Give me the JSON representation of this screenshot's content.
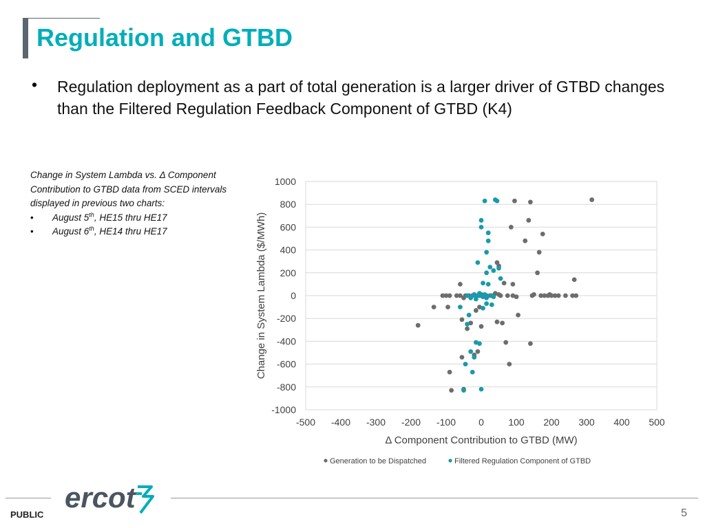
{
  "page": {
    "title": "Regulation and GTBD",
    "bullet": "Regulation deployment as a part of total generation is a larger driver of GTBD changes than the Filtered Regulation Feedback Component of GTBD (K4)",
    "note_intro": "Change in System Lambda vs. Δ Component Contribution to GTBD data from SCED intervals displayed in previous two charts:",
    "note_items": [
      {
        "pre": "August 5",
        "sup": "th",
        "post": ", HE15 thru HE17"
      },
      {
        "pre": "August 6",
        "sup": "th",
        "post": ", HE14 thru HE17"
      }
    ],
    "footer_label": "PUBLIC",
    "page_number": "5",
    "logo_text": "ercot",
    "colors": {
      "title": "#00aeb9",
      "series_gen": "#6d6d6d",
      "series_reg": "#1a9aaa",
      "logo": "#4a5560",
      "logo_mark": "#00aeb9"
    }
  },
  "chart_data": {
    "type": "scatter",
    "xlabel": "Δ Component Contribution to GTBD (MW)",
    "ylabel": "Change in System Lambda ($/MWh)",
    "xlim": [
      -500,
      500
    ],
    "ylim": [
      -1000,
      1000
    ],
    "xticks": [
      -500,
      -400,
      -300,
      -200,
      -100,
      0,
      100,
      200,
      300,
      400,
      500
    ],
    "yticks": [
      1000,
      800,
      600,
      400,
      200,
      0,
      -200,
      -400,
      -600,
      -800,
      -1000
    ],
    "grid": "y-major",
    "legend_position": "bottom",
    "series": [
      {
        "name": "Generation to be Dispatched",
        "color": "#6d6d6d",
        "points": [
          [
            -180,
            -260
          ],
          [
            -135,
            -100
          ],
          [
            -100,
            0
          ],
          [
            -90,
            0
          ],
          [
            -95,
            -100
          ],
          [
            -90,
            -670
          ],
          [
            -85,
            -830
          ],
          [
            -60,
            100
          ],
          [
            -55,
            -210
          ],
          [
            -55,
            -540
          ],
          [
            -50,
            -820
          ],
          [
            -40,
            -290
          ],
          [
            -30,
            -240
          ],
          [
            -20,
            -520
          ],
          [
            -15,
            -130
          ],
          [
            -10,
            -490
          ],
          [
            -5,
            -100
          ],
          [
            0,
            -270
          ],
          [
            -70,
            0
          ],
          [
            -60,
            0
          ],
          [
            -45,
            0
          ],
          [
            -35,
            0
          ],
          [
            -25,
            0
          ],
          [
            -15,
            0
          ],
          [
            -5,
            0
          ],
          [
            5,
            0
          ],
          [
            15,
            0
          ],
          [
            25,
            0
          ],
          [
            35,
            0
          ],
          [
            40,
            20
          ],
          [
            45,
            290
          ],
          [
            50,
            260
          ],
          [
            50,
            10
          ],
          [
            45,
            -230
          ],
          [
            60,
            -240
          ],
          [
            65,
            110
          ],
          [
            70,
            -410
          ],
          [
            75,
            0
          ],
          [
            80,
            -600
          ],
          [
            85,
            600
          ],
          [
            90,
            100
          ],
          [
            90,
            0
          ],
          [
            95,
            830
          ],
          [
            100,
            -10
          ],
          [
            105,
            -170
          ],
          [
            125,
            480
          ],
          [
            135,
            660
          ],
          [
            140,
            -420
          ],
          [
            145,
            0
          ],
          [
            150,
            10
          ],
          [
            160,
            200
          ],
          [
            165,
            380
          ],
          [
            170,
            0
          ],
          [
            175,
            540
          ],
          [
            180,
            0
          ],
          [
            190,
            0
          ],
          [
            195,
            10
          ],
          [
            200,
            0
          ],
          [
            210,
            0
          ],
          [
            220,
            0
          ],
          [
            240,
            0
          ],
          [
            260,
            0
          ],
          [
            265,
            140
          ],
          [
            270,
            0
          ],
          [
            315,
            840
          ],
          [
            140,
            820
          ],
          [
            -110,
            0
          ],
          [
            -50,
            -20
          ],
          [
            0,
            10
          ],
          [
            10,
            0
          ],
          [
            55,
            0
          ]
        ]
      },
      {
        "name": "Filtered Regulation Component of GTBD",
        "color": "#1a9aaa",
        "points": [
          [
            -60,
            -100
          ],
          [
            -50,
            -830
          ],
          [
            -45,
            -600
          ],
          [
            -40,
            -250
          ],
          [
            -35,
            -170
          ],
          [
            -30,
            -490
          ],
          [
            -25,
            -670
          ],
          [
            -20,
            -540
          ],
          [
            -15,
            -410
          ],
          [
            -10,
            0
          ],
          [
            -5,
            -420
          ],
          [
            0,
            -820
          ],
          [
            0,
            660
          ],
          [
            0,
            600
          ],
          [
            5,
            110
          ],
          [
            10,
            10
          ],
          [
            10,
            830
          ],
          [
            15,
            200
          ],
          [
            15,
            380
          ],
          [
            20,
            480
          ],
          [
            20,
            550
          ],
          [
            25,
            250
          ],
          [
            30,
            -80
          ],
          [
            35,
            220
          ],
          [
            40,
            840
          ],
          [
            45,
            830
          ],
          [
            50,
            240
          ],
          [
            55,
            150
          ],
          [
            -10,
            290
          ],
          [
            5,
            -110
          ],
          [
            15,
            -70
          ],
          [
            20,
            100
          ],
          [
            25,
            0
          ],
          [
            30,
            0
          ],
          [
            -40,
            0
          ],
          [
            -30,
            -20
          ],
          [
            -20,
            10
          ],
          [
            -5,
            20
          ],
          [
            0,
            0
          ],
          [
            5,
            -10
          ],
          [
            10,
            0
          ],
          [
            15,
            -20
          ],
          [
            -25,
            0
          ],
          [
            -15,
            -30
          ],
          [
            35,
            -10
          ]
        ]
      }
    ]
  }
}
